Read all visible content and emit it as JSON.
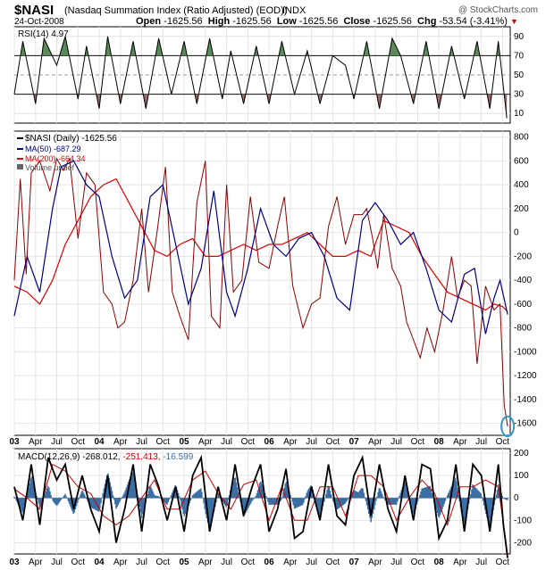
{
  "header": {
    "symbol": "$NASI",
    "description": "(Nasdaq Summation Index (Ratio Adjusted) (EOD))",
    "exchange": "INDX",
    "watermark": "@ StockCharts.com",
    "date": "24-Oct-2008",
    "open_label": "Open",
    "open": "-1625.56",
    "high_label": "High",
    "high": "-1625.56",
    "low_label": "Low",
    "low": "-1625.56",
    "close_label": "Close",
    "close": "-1625.56",
    "chg_label": "Chg",
    "chg": "-53.54 (-3.41%)",
    "chg_color": "#cc0000"
  },
  "colors": {
    "price": "#8b0000",
    "ma50": "#000080",
    "ma200": "#dd0000",
    "rsi_overbought": "#5a8a5a",
    "rsi_oversold": "#9a6a6a",
    "macd_line": "#000000",
    "macd_signal": "#cc0000",
    "macd_hist": "#3a6ea5",
    "highlight_circle": "#3399cc"
  },
  "rsi_panel": {
    "label": "RSI(14) 4.97",
    "ticks": [
      "90",
      "70",
      "50",
      "30",
      "10"
    ]
  },
  "price_panel": {
    "legend_price": "$NASI (Daily) -1625.56",
    "legend_ma50": "MA(50) -687.29",
    "legend_ma200": "MA(200) -664.34",
    "legend_volume": "Volume undef",
    "ticks": [
      "800",
      "600",
      "400",
      "200",
      "0",
      "-200",
      "-400",
      "-600",
      "-800",
      "-1000",
      "-1200",
      "-1400",
      "-1600"
    ]
  },
  "macd_panel": {
    "label_prefix": "MACD(12,26,9)",
    "macd_value": "-268.012,",
    "signal_value": "-251.413,",
    "hist_value": "-16.599",
    "ticks": [
      "200",
      "100",
      "0",
      "-100",
      "-200"
    ]
  },
  "x_axis": {
    "labels": [
      "03",
      "Apr",
      "Jul",
      "Oct",
      "04",
      "Apr",
      "Jul",
      "Oct",
      "05",
      "Apr",
      "Jul",
      "Oct",
      "06",
      "Apr",
      "Jul",
      "Oct",
      "07",
      "Apr",
      "Jul",
      "Oct",
      "08",
      "Apr",
      "Jul",
      "Oct"
    ],
    "bold": [
      true,
      false,
      false,
      false,
      true,
      false,
      false,
      false,
      true,
      false,
      false,
      false,
      true,
      false,
      false,
      false,
      true,
      false,
      false,
      false,
      true,
      false,
      false,
      false
    ]
  },
  "chart_data": [
    {
      "type": "line",
      "title": "RSI(14)",
      "ylim": [
        0,
        100
      ],
      "x": [
        2003.0,
        2003.1,
        2003.25,
        2003.35,
        2003.5,
        2003.6,
        2003.75,
        2003.85,
        2004.0,
        2004.1,
        2004.25,
        2004.4,
        2004.55,
        2004.7,
        2004.85,
        2005.0,
        2005.15,
        2005.3,
        2005.45,
        2005.55,
        2005.7,
        2005.85,
        2006.0,
        2006.15,
        2006.3,
        2006.45,
        2006.6,
        2006.75,
        2006.9,
        2007.0,
        2007.15,
        2007.3,
        2007.45,
        2007.55,
        2007.7,
        2007.85,
        2008.0,
        2008.15,
        2008.3,
        2008.45,
        2008.6,
        2008.7,
        2008.8
      ],
      "values": [
        30,
        85,
        20,
        88,
        60,
        90,
        25,
        80,
        15,
        90,
        20,
        85,
        15,
        88,
        30,
        85,
        20,
        88,
        25,
        75,
        20,
        80,
        20,
        85,
        30,
        75,
        20,
        70,
        60,
        25,
        85,
        15,
        88,
        70,
        20,
        85,
        15,
        80,
        25,
        85,
        15,
        85,
        5
      ],
      "overbought": 70,
      "oversold": 30,
      "current": 4.97
    },
    {
      "type": "line",
      "title": "$NASI (Nasdaq Summation Index (Ratio Adjusted) (EOD))",
      "ylim": [
        -1700,
        850
      ],
      "series": [
        {
          "name": "$NASI (Daily)",
          "x": [
            2003.0,
            2003.07,
            2003.14,
            2003.2,
            2003.3,
            2003.42,
            2003.5,
            2003.58,
            2003.65,
            2003.75,
            2003.85,
            2003.95,
            2004.05,
            2004.15,
            2004.22,
            2004.3,
            2004.4,
            2004.5,
            2004.58,
            2004.68,
            2004.78,
            2004.86,
            2004.95,
            2005.05,
            2005.15,
            2005.25,
            2005.32,
            2005.42,
            2005.5,
            2005.58,
            2005.68,
            2005.78,
            2005.88,
            2006.0,
            2006.1,
            2006.18,
            2006.28,
            2006.4,
            2006.5,
            2006.6,
            2006.7,
            2006.8,
            2006.9,
            2007.0,
            2007.1,
            2007.15,
            2007.22,
            2007.28,
            2007.35,
            2007.45,
            2007.55,
            2007.62,
            2007.7,
            2007.78,
            2007.86,
            2007.95,
            2008.05,
            2008.15,
            2008.22,
            2008.3,
            2008.38,
            2008.45,
            2008.55,
            2008.65,
            2008.72,
            2008.77,
            2008.81
          ],
          "values": [
            -400,
            450,
            -350,
            500,
            600,
            350,
            620,
            520,
            620,
            -50,
            500,
            400,
            -500,
            -600,
            -800,
            -750,
            -400,
            200,
            -500,
            0,
            550,
            -500,
            -700,
            -900,
            250,
            600,
            -700,
            -800,
            400,
            -500,
            -400,
            300,
            -250,
            -300,
            50,
            300,
            -450,
            -800,
            -600,
            -550,
            50,
            300,
            -100,
            150,
            150,
            200,
            -50,
            -300,
            150,
            -300,
            -450,
            -750,
            -900,
            -1050,
            -800,
            -1000,
            -650,
            -200,
            -550,
            -400,
            -450,
            -1100,
            -450,
            -650,
            -600,
            -1450,
            -1625.56
          ]
        },
        {
          "name": "MA(50)",
          "x": [
            2003.0,
            2003.15,
            2003.3,
            2003.45,
            2003.55,
            2003.7,
            2003.85,
            2004.0,
            2004.15,
            2004.3,
            2004.45,
            2004.6,
            2004.75,
            2004.9,
            2005.05,
            2005.2,
            2005.35,
            2005.5,
            2005.6,
            2005.75,
            2005.9,
            2006.05,
            2006.2,
            2006.35,
            2006.5,
            2006.65,
            2006.8,
            2006.95,
            2007.1,
            2007.25,
            2007.4,
            2007.55,
            2007.7,
            2007.85,
            2008.0,
            2008.15,
            2008.3,
            2008.42,
            2008.55,
            2008.65,
            2008.72,
            2008.81
          ],
          "values": [
            -700,
            -200,
            -500,
            200,
            550,
            600,
            400,
            300,
            -200,
            -550,
            -400,
            300,
            400,
            -100,
            -600,
            -300,
            350,
            -500,
            -700,
            -300,
            200,
            -100,
            -200,
            -50,
            0,
            -200,
            -550,
            -650,
            100,
            250,
            100,
            -100,
            0,
            -300,
            -650,
            -750,
            -350,
            -300,
            -850,
            -550,
            -400,
            -687.29
          ]
        },
        {
          "name": "MA(200)",
          "x": [
            2003.0,
            2003.15,
            2003.3,
            2003.45,
            2003.6,
            2003.75,
            2003.9,
            2004.05,
            2004.2,
            2004.35,
            2004.5,
            2004.65,
            2004.8,
            2004.95,
            2005.1,
            2005.25,
            2005.4,
            2005.55,
            2005.7,
            2005.85,
            2006.0,
            2006.15,
            2006.3,
            2006.45,
            2006.6,
            2006.75,
            2006.9,
            2007.05,
            2007.2,
            2007.35,
            2007.5,
            2007.65,
            2007.8,
            2007.95,
            2008.1,
            2008.25,
            2008.4,
            2008.55,
            2008.65,
            2008.75,
            2008.81
          ],
          "values": [
            -450,
            -500,
            -600,
            -400,
            -100,
            100,
            300,
            400,
            450,
            250,
            50,
            -150,
            -200,
            -100,
            -50,
            -200,
            -200,
            -150,
            -100,
            -150,
            -100,
            -100,
            -50,
            0,
            -100,
            -200,
            -200,
            -150,
            -200,
            100,
            50,
            0,
            -200,
            -350,
            -500,
            -550,
            -600,
            -650,
            -600,
            -620,
            -664.34
          ]
        }
      ]
    },
    {
      "type": "line",
      "title": "MACD(12,26,9)",
      "ylim": [
        -250,
        220
      ],
      "series": [
        {
          "name": "MACD",
          "x": [
            2003.0,
            2003.1,
            2003.2,
            2003.3,
            2003.4,
            2003.5,
            2003.6,
            2003.7,
            2003.8,
            2003.9,
            2004.0,
            2004.1,
            2004.2,
            2004.3,
            2004.4,
            2004.5,
            2004.6,
            2004.7,
            2004.8,
            2004.9,
            2005.0,
            2005.1,
            2005.2,
            2005.3,
            2005.4,
            2005.5,
            2005.6,
            2005.7,
            2005.8,
            2005.9,
            2006.0,
            2006.1,
            2006.2,
            2006.3,
            2006.4,
            2006.5,
            2006.6,
            2006.7,
            2006.8,
            2006.9,
            2007.0,
            2007.1,
            2007.2,
            2007.3,
            2007.4,
            2007.5,
            2007.6,
            2007.7,
            2007.8,
            2007.9,
            2008.0,
            2008.1,
            2008.2,
            2008.3,
            2008.4,
            2008.5,
            2008.6,
            2008.7,
            2008.76,
            2008.81
          ],
          "values": [
            50,
            -100,
            150,
            -120,
            180,
            80,
            150,
            -50,
            100,
            -50,
            -150,
            100,
            -200,
            -50,
            150,
            -150,
            150,
            50,
            -100,
            50,
            -150,
            100,
            180,
            -150,
            50,
            -100,
            150,
            -80,
            50,
            150,
            -150,
            -50,
            130,
            -180,
            -150,
            50,
            -100,
            150,
            -80,
            -120,
            100,
            180,
            -80,
            150,
            -50,
            -150,
            100,
            -100,
            150,
            130,
            -180,
            -100,
            150,
            -150,
            150,
            100,
            -150,
            150,
            -120,
            -268.012
          ]
        },
        {
          "name": "Signal",
          "x": [
            2003.0,
            2003.15,
            2003.3,
            2003.45,
            2003.6,
            2003.75,
            2003.9,
            2004.05,
            2004.2,
            2004.35,
            2004.5,
            2004.65,
            2004.8,
            2004.95,
            2005.1,
            2005.25,
            2005.4,
            2005.55,
            2005.7,
            2005.85,
            2006.0,
            2006.15,
            2006.3,
            2006.45,
            2006.6,
            2006.75,
            2006.9,
            2007.05,
            2007.2,
            2007.35,
            2007.5,
            2007.65,
            2007.8,
            2007.95,
            2008.1,
            2008.25,
            2008.4,
            2008.55,
            2008.7,
            2008.81
          ],
          "values": [
            40,
            0,
            -50,
            150,
            120,
            50,
            20,
            -80,
            -120,
            -80,
            0,
            80,
            -50,
            -50,
            80,
            120,
            20,
            -50,
            60,
            80,
            -100,
            50,
            -100,
            -100,
            50,
            50,
            -80,
            100,
            100,
            50,
            -100,
            0,
            80,
            20,
            -120,
            50,
            50,
            80,
            50,
            -251.413
          ]
        }
      ]
    }
  ]
}
